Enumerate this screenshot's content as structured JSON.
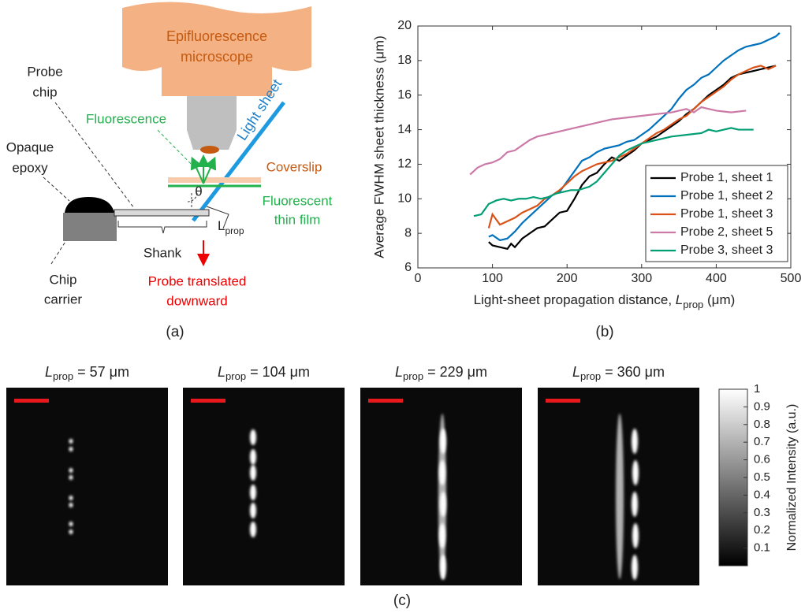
{
  "panel_labels": [
    "(a)",
    "(b)",
    "(c)"
  ],
  "diagram": {
    "microscope": [
      "Epifluorescence",
      "microscope"
    ],
    "light_sheet": "Light sheet",
    "fluorescence": "Fluorescence",
    "probe_chip": [
      "Probe",
      "chip"
    ],
    "opaque_epoxy": [
      "Opaque",
      "epoxy"
    ],
    "coverslip": "Coverslip",
    "thin_film": [
      "Fluorescent",
      "thin film"
    ],
    "theta": "θ",
    "lprop": {
      "symbol": "L",
      "sub": "prop"
    },
    "shank": "Shank",
    "chip_carrier": [
      "Chip",
      "carrier"
    ],
    "translated": [
      "Probe translated",
      "downward"
    ]
  },
  "chart_data": {
    "type": "line",
    "xlabel": {
      "text": "Light-sheet propagation distance, ",
      "symbol": "L",
      "sub": "prop",
      "unit": " (μm)"
    },
    "ylabel": "Average FWHM sheet thickness (μm)",
    "xlim": [
      0,
      500
    ],
    "xticks": [
      0,
      100,
      200,
      300,
      400,
      500
    ],
    "ylim": [
      6,
      20
    ],
    "yticks": [
      6,
      8,
      10,
      12,
      14,
      16,
      18,
      20
    ],
    "legend": "lower right",
    "series": [
      {
        "name": "Probe 1, sheet 1",
        "color": "#000000",
        "x": [
          95,
          100,
          110,
          120,
          125,
          130,
          140,
          150,
          160,
          170,
          180,
          190,
          200,
          210,
          220,
          230,
          240,
          250,
          260,
          270,
          280,
          290,
          300,
          310,
          320,
          330,
          340,
          350,
          360,
          370,
          380,
          390,
          400,
          410,
          420,
          430,
          440,
          450,
          460,
          470,
          480
        ],
        "values": [
          7.5,
          7.3,
          7.2,
          7.1,
          7.4,
          7.2,
          7.7,
          8.0,
          8.3,
          8.4,
          8.8,
          9.2,
          9.3,
          10.0,
          10.8,
          11.3,
          11.5,
          12.0,
          12.4,
          12.2,
          12.5,
          12.8,
          13.2,
          13.4,
          13.6,
          13.9,
          14.2,
          14.5,
          14.9,
          15.2,
          15.6,
          16.0,
          16.3,
          16.6,
          17.0,
          17.2,
          17.3,
          17.4,
          17.5,
          17.6,
          17.7
        ]
      },
      {
        "name": "Probe 1, sheet 2",
        "color": "#0072bd",
        "x": [
          95,
          100,
          110,
          120,
          130,
          140,
          150,
          160,
          170,
          180,
          190,
          200,
          210,
          220,
          230,
          240,
          250,
          260,
          270,
          280,
          290,
          300,
          310,
          320,
          330,
          340,
          350,
          360,
          370,
          380,
          390,
          400,
          410,
          420,
          430,
          440,
          450,
          460,
          470,
          480,
          485
        ],
        "values": [
          7.8,
          7.9,
          7.6,
          7.7,
          8.1,
          8.6,
          9.0,
          9.4,
          9.8,
          10.2,
          10.4,
          11.0,
          11.6,
          12.2,
          12.4,
          12.7,
          12.9,
          13.0,
          13.1,
          13.3,
          13.4,
          13.7,
          14.0,
          14.4,
          14.8,
          15.2,
          15.8,
          16.3,
          16.6,
          17.0,
          17.2,
          17.6,
          18.0,
          18.3,
          18.6,
          18.8,
          18.9,
          19.0,
          19.2,
          19.4,
          19.6
        ]
      },
      {
        "name": "Probe 1, sheet 3",
        "color": "#d95319",
        "x": [
          95,
          100,
          110,
          120,
          130,
          140,
          150,
          160,
          170,
          180,
          190,
          200,
          210,
          220,
          230,
          240,
          250,
          260,
          270,
          280,
          290,
          300,
          310,
          320,
          330,
          340,
          350,
          360,
          370,
          380,
          390,
          400,
          410,
          420,
          430,
          440,
          450,
          460,
          470,
          480
        ],
        "values": [
          8.3,
          9.1,
          8.5,
          8.7,
          8.9,
          9.2,
          9.4,
          9.6,
          10.0,
          10.2,
          10.5,
          10.9,
          11.3,
          11.6,
          11.8,
          12.0,
          12.1,
          12.2,
          12.4,
          12.6,
          12.9,
          13.2,
          13.5,
          13.8,
          14.0,
          14.3,
          14.6,
          14.8,
          15.2,
          15.6,
          15.9,
          16.2,
          16.5,
          16.9,
          17.2,
          17.4,
          17.6,
          17.7,
          17.5,
          17.7
        ]
      },
      {
        "name": "Probe 2, sheet 5",
        "color": "#cc79a7",
        "x": [
          70,
          80,
          90,
          100,
          110,
          120,
          130,
          140,
          150,
          160,
          170,
          180,
          190,
          200,
          220,
          240,
          260,
          280,
          300,
          320,
          340,
          360,
          370,
          380,
          400,
          420,
          440
        ],
        "values": [
          11.4,
          11.8,
          12.0,
          12.1,
          12.3,
          12.7,
          12.8,
          13.1,
          13.4,
          13.6,
          13.7,
          13.8,
          13.9,
          14.0,
          14.2,
          14.4,
          14.6,
          14.7,
          14.8,
          14.9,
          15.0,
          15.2,
          15.0,
          15.3,
          15.1,
          15.0,
          15.1
        ]
      },
      {
        "name": "Probe 3, sheet 3",
        "color": "#009e73",
        "x": [
          75,
          85,
          95,
          105,
          115,
          125,
          135,
          145,
          155,
          165,
          175,
          185,
          195,
          205,
          215,
          230,
          240,
          250,
          260,
          270,
          280,
          290,
          300,
          320,
          340,
          360,
          380,
          390,
          400,
          410,
          420,
          430,
          450
        ],
        "values": [
          9.0,
          9.1,
          9.7,
          9.9,
          10.0,
          9.9,
          10.0,
          10.0,
          10.1,
          10.0,
          10.1,
          10.3,
          10.4,
          10.5,
          10.5,
          10.7,
          11.0,
          11.5,
          12.0,
          12.5,
          12.8,
          13.0,
          13.2,
          13.4,
          13.6,
          13.7,
          13.8,
          14.0,
          13.9,
          14.0,
          14.1,
          14.0,
          14.0
        ]
      }
    ]
  },
  "images": {
    "panels": [
      {
        "symbol": "L",
        "sub": "prop",
        "text": " = 57 μm"
      },
      {
        "symbol": "L",
        "sub": "prop",
        "text": " = 104 μm"
      },
      {
        "symbol": "L",
        "sub": "prop",
        "text": " = 229 μm"
      },
      {
        "symbol": "L",
        "sub": "prop",
        "text": " = 360 μm"
      }
    ],
    "colorbar": {
      "label": "Normalized Intensity (a.u.)",
      "lim": [
        0,
        1
      ],
      "ticks": [
        0.1,
        0.2,
        0.3,
        0.4,
        0.5,
        0.6,
        0.7,
        0.8,
        0.9,
        1
      ]
    }
  }
}
